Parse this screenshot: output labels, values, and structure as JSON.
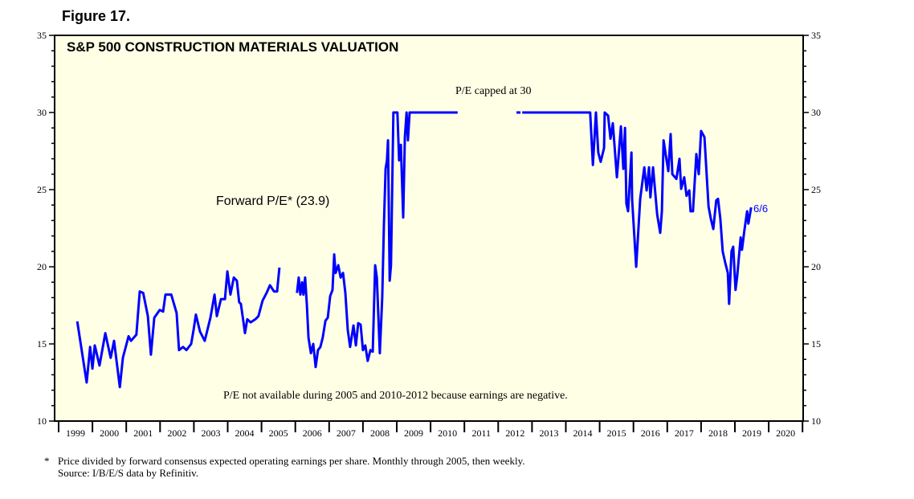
{
  "figure_label": "Figure 17.",
  "footnote": {
    "marker": "*",
    "text": "Price divided by forward consensus expected operating earnings per share. Monthly through 2005, then weekly.",
    "source": "Source: I/B/E/S data by Refinitiv."
  },
  "chart_data": {
    "type": "line",
    "title": "S&P 500 CONSTRUCTION MATERIALS VALUATION",
    "xlabel": "",
    "ylabel": "",
    "ylim": [
      10,
      35
    ],
    "xlim": [
      1999,
      2021
    ],
    "y_ticks": [
      10,
      15,
      20,
      25,
      30,
      35
    ],
    "x_tick_labels": [
      "1999",
      "2000",
      "2001",
      "2002",
      "2003",
      "2004",
      "2005",
      "2006",
      "2007",
      "2008",
      "2009",
      "2010",
      "2011",
      "2012",
      "2013",
      "2014",
      "2015",
      "2016",
      "2017",
      "2018",
      "2019",
      "2020"
    ],
    "colors": {
      "line": "#0000ff",
      "background": "#ffffe6"
    },
    "annotations": {
      "series_label": "Forward P/E* (23.9)",
      "end_label": "6/6",
      "cap_note": "P/E capped at 30",
      "na_note": "P/E not available during 2005 and 2010-2012 because earnings are negative."
    },
    "series": [
      {
        "name": "Forward P/E",
        "segments": [
          [
            [
              1999.55,
              16.46
            ],
            [
              1999.83,
              12.5
            ],
            [
              1999.93,
              14.8
            ],
            [
              2000.0,
              13.4
            ],
            [
              2000.07,
              14.9
            ],
            [
              2000.21,
              13.6
            ],
            [
              2000.38,
              15.7
            ],
            [
              2000.54,
              14.1
            ],
            [
              2000.64,
              15.2
            ],
            [
              2000.81,
              12.2
            ],
            [
              2000.9,
              14.1
            ],
            [
              2001.07,
              15.5
            ],
            [
              2001.14,
              15.2
            ],
            [
              2001.3,
              15.6
            ],
            [
              2001.4,
              18.4
            ],
            [
              2001.5,
              18.3
            ],
            [
              2001.64,
              16.8
            ],
            [
              2001.73,
              14.3
            ],
            [
              2001.83,
              16.7
            ],
            [
              2001.99,
              17.2
            ],
            [
              2002.09,
              17.1
            ],
            [
              2002.16,
              18.2
            ],
            [
              2002.33,
              18.2
            ],
            [
              2002.49,
              17.0
            ],
            [
              2002.56,
              14.6
            ],
            [
              2002.68,
              14.8
            ],
            [
              2002.78,
              14.6
            ],
            [
              2002.92,
              15.0
            ],
            [
              2002.99,
              15.9
            ],
            [
              2003.06,
              16.9
            ],
            [
              2003.18,
              15.8
            ],
            [
              2003.32,
              15.2
            ],
            [
              2003.49,
              16.7
            ],
            [
              2003.61,
              18.2
            ],
            [
              2003.68,
              16.8
            ],
            [
              2003.8,
              17.9
            ],
            [
              2003.92,
              17.9
            ],
            [
              2003.99,
              19.7
            ],
            [
              2004.08,
              18.2
            ],
            [
              2004.18,
              19.3
            ],
            [
              2004.27,
              19.1
            ],
            [
              2004.34,
              17.7
            ],
            [
              2004.39,
              17.6
            ],
            [
              2004.46,
              16.5
            ],
            [
              2004.51,
              15.7
            ],
            [
              2004.58,
              16.6
            ],
            [
              2004.68,
              16.4
            ],
            [
              2004.82,
              16.6
            ],
            [
              2004.91,
              16.8
            ],
            [
              2005.03,
              17.8
            ],
            [
              2005.15,
              18.3
            ],
            [
              2005.25,
              18.8
            ],
            [
              2005.37,
              18.4
            ],
            [
              2005.46,
              18.4
            ],
            [
              2005.53,
              19.95
            ]
          ],
          [
            [
              2006.05,
              18.3
            ],
            [
              2006.1,
              19.3
            ],
            [
              2006.15,
              18.2
            ],
            [
              2006.2,
              19.0
            ],
            [
              2006.24,
              18.2
            ],
            [
              2006.29,
              19.3
            ],
            [
              2006.34,
              17.6
            ],
            [
              2006.39,
              15.4
            ],
            [
              2006.46,
              14.4
            ],
            [
              2006.53,
              15.0
            ],
            [
              2006.6,
              13.5
            ],
            [
              2006.67,
              14.6
            ],
            [
              2006.74,
              14.8
            ],
            [
              2006.81,
              15.4
            ],
            [
              2006.89,
              16.5
            ],
            [
              2006.96,
              16.7
            ],
            [
              2007.03,
              18.1
            ],
            [
              2007.1,
              18.5
            ],
            [
              2007.15,
              20.8
            ],
            [
              2007.19,
              19.6
            ],
            [
              2007.27,
              20.1
            ],
            [
              2007.34,
              19.3
            ],
            [
              2007.41,
              19.6
            ],
            [
              2007.48,
              18.3
            ],
            [
              2007.55,
              15.9
            ],
            [
              2007.62,
              14.8
            ],
            [
              2007.72,
              16.2
            ],
            [
              2007.79,
              14.9
            ],
            [
              2007.86,
              16.35
            ],
            [
              2007.93,
              16.25
            ],
            [
              2008.0,
              14.6
            ],
            [
              2008.07,
              14.9
            ],
            [
              2008.14,
              13.9
            ],
            [
              2008.22,
              14.6
            ],
            [
              2008.29,
              14.5
            ],
            [
              2008.36,
              20.1
            ],
            [
              2008.41,
              19.3
            ],
            [
              2008.5,
              14.4
            ],
            [
              2008.57,
              18.0
            ],
            [
              2008.62,
              22.7
            ],
            [
              2008.67,
              26.35
            ],
            [
              2008.71,
              26.9
            ],
            [
              2008.74,
              28.2
            ],
            [
              2008.79,
              19.1
            ],
            [
              2008.83,
              20.1
            ],
            [
              2008.9,
              30
            ],
            [
              2009.02,
              30
            ],
            [
              2009.07,
              26.9
            ],
            [
              2009.12,
              27.9
            ],
            [
              2009.19,
              23.2
            ],
            [
              2009.24,
              28.4
            ],
            [
              2009.29,
              30
            ],
            [
              2009.33,
              28.2
            ],
            [
              2009.38,
              30
            ],
            [
              2010.8,
              30
            ]
          ],
          [
            [
              2012.54,
              30
            ],
            [
              2012.66,
              30
            ]
          ],
          [
            [
              2012.71,
              30
            ],
            [
              2014.72,
              30
            ],
            [
              2014.8,
              26.6
            ],
            [
              2014.89,
              30
            ],
            [
              2014.96,
              27.4
            ],
            [
              2015.03,
              26.8
            ],
            [
              2015.13,
              27.7
            ],
            [
              2015.15,
              30
            ],
            [
              2015.25,
              29.8
            ],
            [
              2015.32,
              28.3
            ],
            [
              2015.39,
              29.3
            ],
            [
              2015.51,
              25.8
            ],
            [
              2015.63,
              29.1
            ],
            [
              2015.7,
              26.35
            ],
            [
              2015.75,
              29.0
            ],
            [
              2015.79,
              24.1
            ],
            [
              2015.84,
              23.6
            ],
            [
              2015.94,
              27.4
            ],
            [
              2015.96,
              24.4
            ],
            [
              2016.08,
              20.0
            ],
            [
              2016.2,
              24.4
            ],
            [
              2016.32,
              26.45
            ],
            [
              2016.39,
              24.95
            ],
            [
              2016.46,
              26.45
            ],
            [
              2016.5,
              24.5
            ],
            [
              2016.58,
              26.45
            ],
            [
              2016.7,
              23.4
            ],
            [
              2016.79,
              22.2
            ],
            [
              2016.84,
              23.6
            ],
            [
              2016.89,
              28.2
            ],
            [
              2016.96,
              27.2
            ],
            [
              2017.03,
              26.2
            ],
            [
              2017.1,
              28.6
            ],
            [
              2017.15,
              26.0
            ],
            [
              2017.27,
              25.7
            ],
            [
              2017.36,
              27.0
            ],
            [
              2017.41,
              25.05
            ],
            [
              2017.5,
              25.8
            ],
            [
              2017.57,
              24.6
            ],
            [
              2017.65,
              24.95
            ],
            [
              2017.69,
              23.6
            ],
            [
              2017.76,
              23.6
            ],
            [
              2017.86,
              27.3
            ],
            [
              2017.93,
              26.0
            ],
            [
              2018.0,
              28.8
            ],
            [
              2018.1,
              28.4
            ],
            [
              2018.22,
              23.9
            ],
            [
              2018.29,
              23.1
            ],
            [
              2018.36,
              22.45
            ],
            [
              2018.45,
              24.3
            ],
            [
              2018.5,
              24.4
            ],
            [
              2018.57,
              23.1
            ],
            [
              2018.64,
              21.0
            ],
            [
              2018.71,
              20.3
            ],
            [
              2018.79,
              19.6
            ],
            [
              2018.83,
              17.6
            ],
            [
              2018.9,
              21.0
            ],
            [
              2018.95,
              21.3
            ],
            [
              2019.02,
              18.5
            ],
            [
              2019.07,
              19.4
            ],
            [
              2019.17,
              21.9
            ],
            [
              2019.21,
              21.1
            ],
            [
              2019.28,
              22.35
            ],
            [
              2019.36,
              23.6
            ],
            [
              2019.4,
              22.8
            ],
            [
              2019.48,
              23.85
            ]
          ]
        ]
      }
    ]
  }
}
